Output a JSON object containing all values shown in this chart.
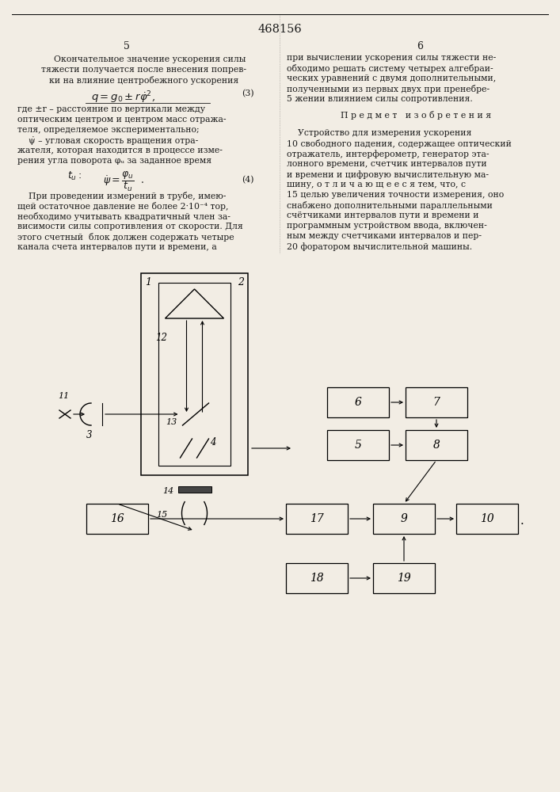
{
  "page_title": "468156",
  "col_left_num": "5",
  "col_right_num": "6",
  "bg_color": "#f2ede4",
  "text_color": "#1a1a1a",
  "figsize": [
    7.07,
    10.0
  ],
  "dpi": 100
}
